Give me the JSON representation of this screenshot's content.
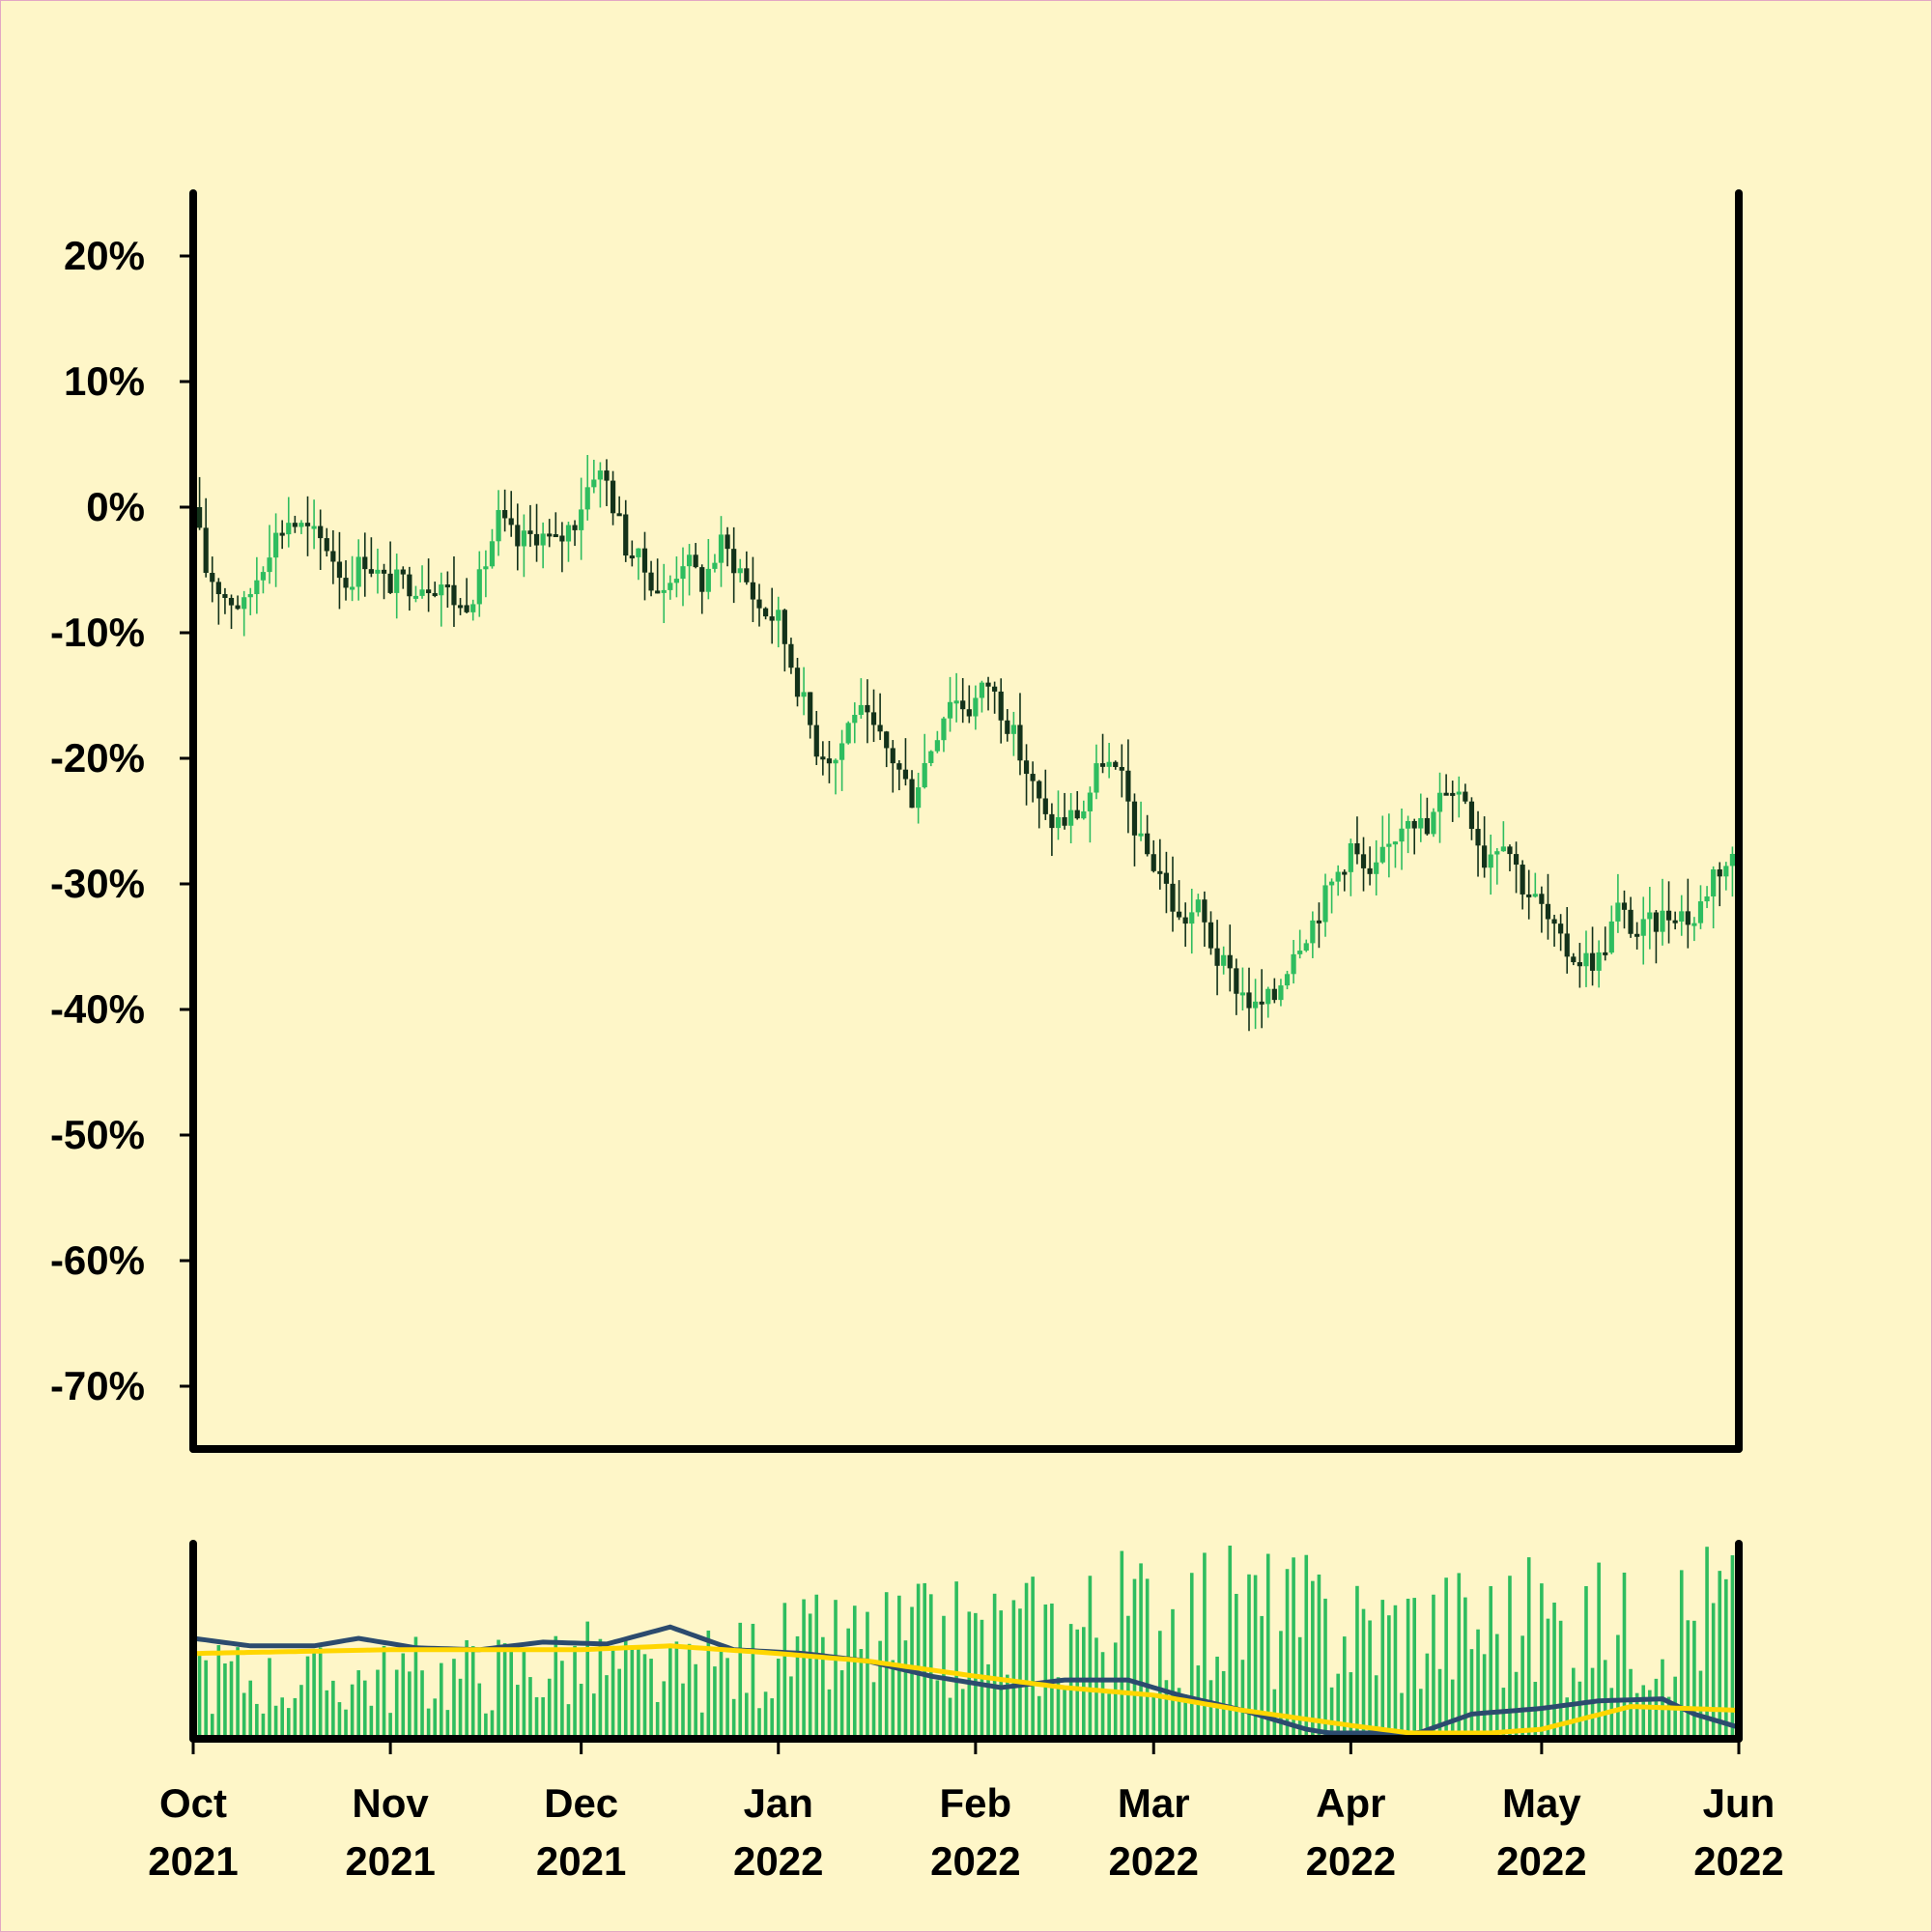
{
  "chart_data": [
    {
      "type": "candlestick",
      "panel": "price",
      "y_unit": "%",
      "ylim": [
        -75,
        25
      ],
      "yticks": [
        20,
        10,
        0,
        -10,
        -20,
        -30,
        -40,
        -50,
        -60,
        -70
      ],
      "ytick_labels": [
        "20%",
        "10%",
        "0%",
        "-10%",
        "-20%",
        "-30%",
        "-40%",
        "-50%",
        "-60%",
        "-70%"
      ],
      "xlim": [
        "2021-10-01",
        "2022-06-01"
      ],
      "colors": {
        "up": "#2ebd5f",
        "down": "#13321a"
      },
      "series": [
        {
          "points": [
            [
              "2021-10-01",
              0
            ],
            [
              "2021-10-03",
              -5
            ],
            [
              "2021-10-06",
              -7
            ],
            [
              "2021-10-09",
              -8
            ],
            [
              "2021-10-13",
              -3
            ],
            [
              "2021-10-16",
              -1
            ],
            [
              "2021-10-19",
              -2
            ],
            [
              "2021-10-22",
              -3
            ],
            [
              "2021-10-25",
              -6
            ],
            [
              "2021-10-28",
              -4
            ],
            [
              "2021-10-31",
              -6
            ],
            [
              "2021-11-03",
              -6
            ],
            [
              "2021-11-06",
              -6
            ],
            [
              "2021-11-09",
              -6
            ],
            [
              "2021-11-12",
              -8
            ],
            [
              "2021-11-15",
              -6
            ],
            [
              "2021-11-18",
              -1
            ],
            [
              "2021-11-21",
              -3
            ],
            [
              "2021-11-24",
              -2
            ],
            [
              "2021-11-27",
              -3
            ],
            [
              "2021-11-30",
              -1
            ],
            [
              "2021-12-03",
              3
            ],
            [
              "2021-12-05",
              2
            ],
            [
              "2021-12-08",
              -3
            ],
            [
              "2021-12-11",
              -5
            ],
            [
              "2021-12-14",
              -7
            ],
            [
              "2021-12-17",
              -4
            ],
            [
              "2021-12-20",
              -6
            ],
            [
              "2021-12-23",
              -3
            ],
            [
              "2021-12-26",
              -5
            ],
            [
              "2021-12-29",
              -8
            ],
            [
              "2022-01-01",
              -9
            ],
            [
              "2022-01-04",
              -14
            ],
            [
              "2022-01-07",
              -19
            ],
            [
              "2022-01-10",
              -20
            ],
            [
              "2022-01-13",
              -16
            ],
            [
              "2022-01-16",
              -18
            ],
            [
              "2022-01-19",
              -20
            ],
            [
              "2022-01-22",
              -23
            ],
            [
              "2022-01-25",
              -19
            ],
            [
              "2022-01-28",
              -15
            ],
            [
              "2022-01-31",
              -16
            ],
            [
              "2022-02-03",
              -14
            ],
            [
              "2022-02-06",
              -17
            ],
            [
              "2022-02-09",
              -21
            ],
            [
              "2022-02-12",
              -25
            ],
            [
              "2022-02-15",
              -25
            ],
            [
              "2022-02-18",
              -24
            ],
            [
              "2022-02-21",
              -20
            ],
            [
              "2022-02-24",
              -22
            ],
            [
              "2022-02-27",
              -27
            ],
            [
              "2022-03-02",
              -29
            ],
            [
              "2022-03-05",
              -33
            ],
            [
              "2022-03-08",
              -32
            ],
            [
              "2022-03-11",
              -36
            ],
            [
              "2022-03-14",
              -38
            ],
            [
              "2022-03-17",
              -40
            ],
            [
              "2022-03-20",
              -39
            ],
            [
              "2022-03-23",
              -35
            ],
            [
              "2022-03-26",
              -33
            ],
            [
              "2022-03-29",
              -30
            ],
            [
              "2022-04-01",
              -27
            ],
            [
              "2022-04-04",
              -30
            ],
            [
              "2022-04-07",
              -27
            ],
            [
              "2022-04-10",
              -24
            ],
            [
              "2022-04-13",
              -26
            ],
            [
              "2022-04-16",
              -22
            ],
            [
              "2022-04-19",
              -23
            ],
            [
              "2022-04-22",
              -28
            ],
            [
              "2022-04-25",
              -26
            ],
            [
              "2022-04-28",
              -30
            ],
            [
              "2022-05-01",
              -32
            ],
            [
              "2022-05-04",
              -35
            ],
            [
              "2022-05-07",
              -36
            ],
            [
              "2022-05-10",
              -36
            ],
            [
              "2022-05-13",
              -32
            ],
            [
              "2022-05-16",
              -34
            ],
            [
              "2022-05-19",
              -33
            ],
            [
              "2022-05-22",
              -32
            ],
            [
              "2022-05-25",
              -33
            ],
            [
              "2022-05-28",
              -29
            ],
            [
              "2022-05-31",
              -28
            ],
            [
              "2022-06-01",
              -34
            ]
          ]
        }
      ]
    },
    {
      "type": "bar",
      "panel": "volume",
      "xlim": [
        "2021-10-01",
        "2022-06-01"
      ],
      "colors": {
        "bars": "#2ebd5f",
        "line_fast": "#2c4b6e",
        "line_slow": "#ffd600"
      },
      "volume_points": [
        [
          "2021-10-01",
          0.45
        ],
        [
          "2021-10-15",
          0.35
        ],
        [
          "2021-11-01",
          0.4
        ],
        [
          "2021-11-15",
          0.42
        ],
        [
          "2021-12-01",
          0.48
        ],
        [
          "2021-12-15",
          0.38
        ],
        [
          "2022-01-01",
          0.55
        ],
        [
          "2022-01-15",
          0.6
        ],
        [
          "2022-02-01",
          0.65
        ],
        [
          "2022-02-15",
          0.72
        ],
        [
          "2022-03-01",
          0.8
        ],
        [
          "2022-03-15",
          0.82
        ],
        [
          "2022-04-01",
          0.7
        ],
        [
          "2022-04-15",
          0.72
        ],
        [
          "2022-05-01",
          0.75
        ],
        [
          "2022-05-15",
          0.7
        ],
        [
          "2022-06-01",
          0.9
        ]
      ],
      "line_fast": [
        [
          "2021-10-01",
          0.5
        ],
        [
          "2021-10-10",
          0.46
        ],
        [
          "2021-10-20",
          0.46
        ],
        [
          "2021-10-27",
          0.5
        ],
        [
          "2021-11-05",
          0.45
        ],
        [
          "2021-11-15",
          0.44
        ],
        [
          "2021-11-25",
          0.48
        ],
        [
          "2021-12-05",
          0.47
        ],
        [
          "2021-12-15",
          0.56
        ],
        [
          "2021-12-25",
          0.44
        ],
        [
          "2022-01-05",
          0.42
        ],
        [
          "2022-01-15",
          0.38
        ],
        [
          "2022-01-25",
          0.3
        ],
        [
          "2022-02-05",
          0.24
        ],
        [
          "2022-02-15",
          0.28
        ],
        [
          "2022-02-25",
          0.28
        ],
        [
          "2022-03-05",
          0.2
        ],
        [
          "2022-03-15",
          0.12
        ],
        [
          "2022-03-25",
          0.02
        ],
        [
          "2022-04-01",
          -0.02
        ],
        [
          "2022-04-10",
          -0.02
        ],
        [
          "2022-04-20",
          0.1
        ],
        [
          "2022-05-01",
          0.13
        ],
        [
          "2022-05-10",
          0.17
        ],
        [
          "2022-05-20",
          0.18
        ],
        [
          "2022-05-25",
          0.1
        ],
        [
          "2022-06-01",
          0.03
        ]
      ],
      "line_slow": [
        [
          "2021-10-01",
          0.42
        ],
        [
          "2021-11-01",
          0.44
        ],
        [
          "2021-12-01",
          0.44
        ],
        [
          "2021-12-15",
          0.46
        ],
        [
          "2022-01-01",
          0.42
        ],
        [
          "2022-01-15",
          0.38
        ],
        [
          "2022-02-01",
          0.3
        ],
        [
          "2022-02-15",
          0.24
        ],
        [
          "2022-03-01",
          0.2
        ],
        [
          "2022-03-15",
          0.12
        ],
        [
          "2022-04-01",
          0.04
        ],
        [
          "2022-04-15",
          -0.02
        ],
        [
          "2022-05-01",
          0.02
        ],
        [
          "2022-05-15",
          0.14
        ],
        [
          "2022-06-01",
          0.12
        ]
      ]
    }
  ],
  "x_axis": {
    "ticks": [
      {
        "date": "2021-10-01",
        "month": "Oct",
        "year": "2021"
      },
      {
        "date": "2021-11-01",
        "month": "Nov",
        "year": "2021"
      },
      {
        "date": "2021-12-01",
        "month": "Dec",
        "year": "2021"
      },
      {
        "date": "2022-01-01",
        "month": "Jan",
        "year": "2022"
      },
      {
        "date": "2022-02-01",
        "month": "Feb",
        "year": "2022"
      },
      {
        "date": "2022-03-01",
        "month": "Mar",
        "year": "2022"
      },
      {
        "date": "2022-04-01",
        "month": "Apr",
        "year": "2022"
      },
      {
        "date": "2022-05-01",
        "month": "May",
        "year": "2022"
      },
      {
        "date": "2022-06-01",
        "month": "Jun",
        "year": "2022"
      }
    ]
  },
  "colors": {
    "background": "#fef6c8",
    "axis": "#000000",
    "frame": "#e3a7c4"
  }
}
